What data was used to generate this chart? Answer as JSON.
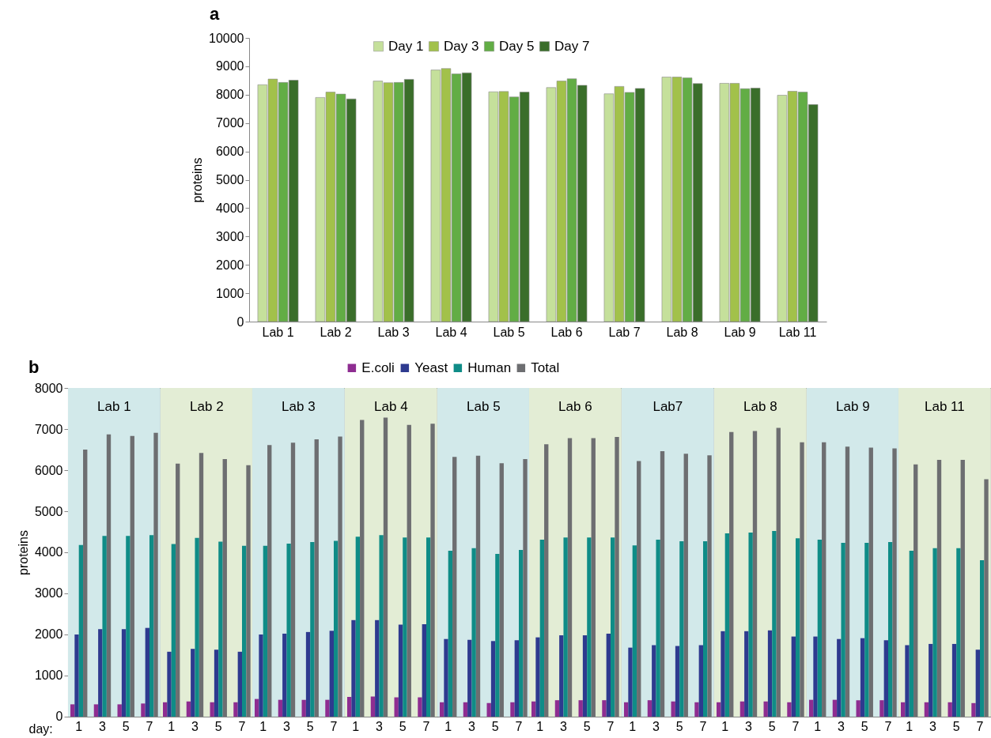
{
  "chart_data": [
    {
      "type": "bar",
      "annotations": [
        "a"
      ],
      "ylabel": "proteins",
      "categories": [
        "Lab 1",
        "Lab 2",
        "Lab 3",
        "Lab 4",
        "Lab 5",
        "Lab 6",
        "Lab 7",
        "Lab 8",
        "Lab 9",
        "Lab 11"
      ],
      "ylim": [
        0,
        10000
      ],
      "yticks": [
        0,
        1000,
        2000,
        3000,
        4000,
        5000,
        6000,
        7000,
        8000,
        9000,
        10000
      ],
      "legend": "top",
      "series": [
        {
          "name": "Day 1",
          "color": "#c5e09b",
          "values": [
            8350,
            7900,
            8480,
            8870,
            8100,
            8250,
            8030,
            8620,
            8400,
            7980
          ]
        },
        {
          "name": "Day 3",
          "color": "#a2c14a",
          "values": [
            8550,
            8090,
            8420,
            8920,
            8110,
            8480,
            8290,
            8620,
            8400,
            8120
          ]
        },
        {
          "name": "Day 5",
          "color": "#62ad45",
          "values": [
            8430,
            8020,
            8430,
            8730,
            7920,
            8560,
            8080,
            8590,
            8210,
            8090
          ]
        },
        {
          "name": "Day 7",
          "color": "#3a6e2a",
          "values": [
            8510,
            7850,
            8540,
            8770,
            8090,
            8330,
            8220,
            8390,
            8230,
            7650
          ]
        }
      ]
    },
    {
      "type": "bar",
      "annotations": [
        "b"
      ],
      "title": "Lab 1",
      "xlabel": "day:",
      "ylabel": "proteins",
      "categories": [
        "1",
        "3",
        "5",
        "7"
      ],
      "ylim": [
        0,
        8000
      ],
      "yticks": [
        0,
        1000,
        2000,
        3000,
        4000,
        5000,
        6000,
        7000,
        8000
      ],
      "bands": [
        {
          "axis": "y",
          "from": 0,
          "to": 8000,
          "color": "#d2e9ea"
        }
      ],
      "series": [
        {
          "color": "#8e2d91",
          "values": [
            300,
            300,
            300,
            320
          ]
        },
        {
          "color": "#2e3a8f",
          "values": [
            2000,
            2130,
            2130,
            2160
          ]
        },
        {
          "color": "#0f8c87",
          "values": [
            4180,
            4400,
            4400,
            4420
          ]
        },
        {
          "color": "#6d6e71",
          "values": [
            6500,
            6870,
            6830,
            6910
          ]
        }
      ]
    },
    {
      "type": "bar",
      "title": "Lab 2",
      "categories": [
        "1",
        "3",
        "5",
        "7"
      ],
      "ylim": [
        0,
        8000
      ],
      "yticks": [
        0,
        1000,
        2000,
        3000,
        4000,
        5000,
        6000,
        7000,
        8000
      ],
      "tick_labels": "x",
      "bands": [
        {
          "axis": "y",
          "from": 0,
          "to": 8000,
          "color": "#e3edd5"
        }
      ],
      "series": [
        {
          "color": "#8e2d91",
          "values": [
            350,
            370,
            350,
            350
          ]
        },
        {
          "color": "#2e3a8f",
          "values": [
            1580,
            1650,
            1630,
            1580
          ]
        },
        {
          "color": "#0f8c87",
          "values": [
            4200,
            4350,
            4260,
            4160
          ]
        },
        {
          "color": "#6d6e71",
          "values": [
            6160,
            6420,
            6270,
            6120
          ]
        }
      ]
    },
    {
      "type": "bar",
      "title": "Lab 3",
      "categories": [
        "1",
        "3",
        "5",
        "7"
      ],
      "ylim": [
        0,
        8000
      ],
      "yticks": [
        0,
        1000,
        2000,
        3000,
        4000,
        5000,
        6000,
        7000,
        8000
      ],
      "tick_labels": "x",
      "bands": [
        {
          "axis": "y",
          "from": 0,
          "to": 8000,
          "color": "#d2e9ea"
        }
      ],
      "series": [
        {
          "color": "#8e2d91",
          "values": [
            430,
            410,
            410,
            410
          ]
        },
        {
          "color": "#2e3a8f",
          "values": [
            2000,
            2020,
            2060,
            2090
          ]
        },
        {
          "color": "#0f8c87",
          "values": [
            4160,
            4210,
            4250,
            4280
          ]
        },
        {
          "color": "#6d6e71",
          "values": [
            6610,
            6670,
            6750,
            6820
          ]
        }
      ]
    },
    {
      "type": "bar",
      "title": "Lab 4",
      "categories": [
        "1",
        "3",
        "5",
        "7"
      ],
      "ylim": [
        0,
        8000
      ],
      "yticks": [
        0,
        1000,
        2000,
        3000,
        4000,
        5000,
        6000,
        7000,
        8000
      ],
      "tick_labels": "x",
      "bands": [
        {
          "axis": "y",
          "from": 0,
          "to": 8000,
          "color": "#e3edd5"
        }
      ],
      "series": [
        {
          "color": "#8e2d91",
          "values": [
            480,
            490,
            470,
            470
          ]
        },
        {
          "color": "#2e3a8f",
          "values": [
            2350,
            2350,
            2240,
            2250
          ]
        },
        {
          "color": "#0f8c87",
          "values": [
            4380,
            4420,
            4360,
            4360
          ]
        },
        {
          "color": "#6d6e71",
          "values": [
            7220,
            7280,
            7100,
            7130
          ]
        }
      ]
    },
    {
      "type": "bar",
      "title": "Lab 5",
      "categories": [
        "1",
        "3",
        "5",
        "7"
      ],
      "ylim": [
        0,
        8000
      ],
      "yticks": [
        0,
        1000,
        2000,
        3000,
        4000,
        5000,
        6000,
        7000,
        8000
      ],
      "tick_labels": "x",
      "legend": "top",
      "bands": [
        {
          "axis": "y",
          "from": 0,
          "to": 8000,
          "color": "#d2e9ea"
        }
      ],
      "series": [
        {
          "name": "E.coli",
          "color": "#8e2d91",
          "values": [
            350,
            350,
            330,
            350
          ]
        },
        {
          "name": "Yeast",
          "color": "#2e3a8f",
          "values": [
            1890,
            1870,
            1840,
            1860
          ]
        },
        {
          "name": "Human",
          "color": "#0f8c87",
          "values": [
            4040,
            4100,
            3960,
            4060
          ]
        },
        {
          "name": "Total",
          "color": "#6d6e71",
          "values": [
            6320,
            6350,
            6170,
            6270
          ]
        }
      ]
    },
    {
      "type": "bar",
      "title": "Lab 6",
      "categories": [
        "1",
        "3",
        "5",
        "7"
      ],
      "ylim": [
        0,
        8000
      ],
      "yticks": [
        0,
        1000,
        2000,
        3000,
        4000,
        5000,
        6000,
        7000,
        8000
      ],
      "tick_labels": "x",
      "bands": [
        {
          "axis": "y",
          "from": 0,
          "to": 8000,
          "color": "#e3edd5"
        }
      ],
      "series": [
        {
          "color": "#8e2d91",
          "values": [
            370,
            400,
            400,
            400
          ]
        },
        {
          "color": "#2e3a8f",
          "values": [
            1930,
            1980,
            1980,
            2020
          ]
        },
        {
          "color": "#0f8c87",
          "values": [
            4310,
            4360,
            4360,
            4360
          ]
        },
        {
          "color": "#6d6e71",
          "values": [
            6630,
            6780,
            6780,
            6810
          ]
        }
      ]
    },
    {
      "type": "bar",
      "title": "Lab7",
      "categories": [
        "1",
        "3",
        "5",
        "7"
      ],
      "ylim": [
        0,
        8000
      ],
      "yticks": [
        0,
        1000,
        2000,
        3000,
        4000,
        5000,
        6000,
        7000,
        8000
      ],
      "tick_labels": "x",
      "bands": [
        {
          "axis": "y",
          "from": 0,
          "to": 8000,
          "color": "#d2e9ea"
        }
      ],
      "series": [
        {
          "color": "#8e2d91",
          "values": [
            350,
            400,
            370,
            350
          ]
        },
        {
          "color": "#2e3a8f",
          "values": [
            1680,
            1740,
            1720,
            1740
          ]
        },
        {
          "color": "#0f8c87",
          "values": [
            4170,
            4310,
            4270,
            4270
          ]
        },
        {
          "color": "#6d6e71",
          "values": [
            6220,
            6460,
            6400,
            6360
          ]
        }
      ]
    },
    {
      "type": "bar",
      "title": "Lab 8",
      "categories": [
        "1",
        "3",
        "5",
        "7"
      ],
      "ylim": [
        0,
        8000
      ],
      "yticks": [
        0,
        1000,
        2000,
        3000,
        4000,
        5000,
        6000,
        7000,
        8000
      ],
      "tick_labels": "x",
      "bands": [
        {
          "axis": "y",
          "from": 0,
          "to": 8000,
          "color": "#e3edd5"
        }
      ],
      "series": [
        {
          "color": "#8e2d91",
          "values": [
            350,
            370,
            370,
            350
          ]
        },
        {
          "color": "#2e3a8f",
          "values": [
            2080,
            2080,
            2100,
            1950
          ]
        },
        {
          "color": "#0f8c87",
          "values": [
            4460,
            4480,
            4520,
            4340
          ]
        },
        {
          "color": "#6d6e71",
          "values": [
            6930,
            6950,
            7030,
            6680
          ]
        }
      ]
    },
    {
      "type": "bar",
      "title": "Lab 9",
      "categories": [
        "1",
        "3",
        "5",
        "7"
      ],
      "ylim": [
        0,
        8000
      ],
      "yticks": [
        0,
        1000,
        2000,
        3000,
        4000,
        5000,
        6000,
        7000,
        8000
      ],
      "tick_labels": "x",
      "bands": [
        {
          "axis": "y",
          "from": 0,
          "to": 8000,
          "color": "#d2e9ea"
        }
      ],
      "series": [
        {
          "color": "#8e2d91",
          "values": [
            410,
            410,
            400,
            400
          ]
        },
        {
          "color": "#2e3a8f",
          "values": [
            1950,
            1890,
            1910,
            1860
          ]
        },
        {
          "color": "#0f8c87",
          "values": [
            4310,
            4230,
            4230,
            4250
          ]
        },
        {
          "color": "#6d6e71",
          "values": [
            6680,
            6570,
            6550,
            6530
          ]
        }
      ]
    },
    {
      "type": "bar",
      "title": "Lab 11",
      "categories": [
        "1",
        "3",
        "5",
        "7"
      ],
      "ylim": [
        0,
        8000
      ],
      "yticks": [
        0,
        1000,
        2000,
        3000,
        4000,
        5000,
        6000,
        7000,
        8000
      ],
      "tick_labels": "x",
      "bands": [
        {
          "axis": "y",
          "from": 0,
          "to": 8000,
          "color": "#e3edd5"
        }
      ],
      "series": [
        {
          "color": "#8e2d91",
          "values": [
            350,
            350,
            350,
            330
          ]
        },
        {
          "color": "#2e3a8f",
          "values": [
            1740,
            1770,
            1770,
            1630
          ]
        },
        {
          "color": "#0f8c87",
          "values": [
            4040,
            4100,
            4100,
            3810
          ]
        },
        {
          "color": "#6d6e71",
          "values": [
            6140,
            6250,
            6250,
            5780
          ]
        }
      ]
    }
  ]
}
